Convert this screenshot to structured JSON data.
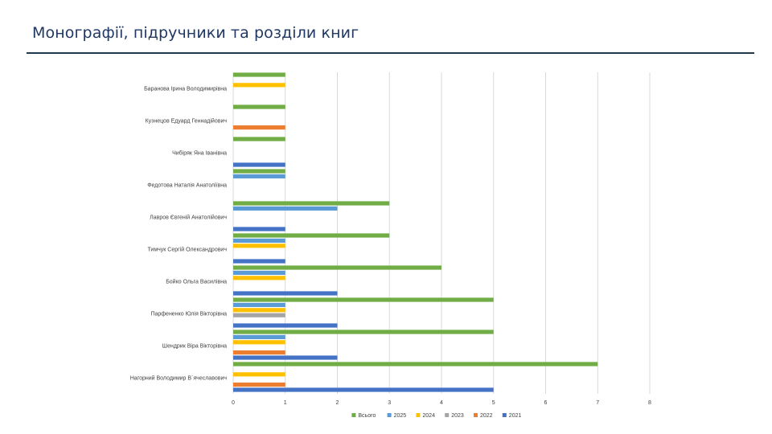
{
  "slide": {
    "title": "Монографії, підручники та розділи книг"
  },
  "chart_data": {
    "type": "bar",
    "orientation": "horizontal",
    "title": "",
    "xlabel": "",
    "ylabel": "",
    "xlim": [
      0,
      8
    ],
    "xticks": [
      "0",
      "1",
      "2",
      "3",
      "4",
      "5",
      "6",
      "7",
      "8"
    ],
    "grid": true,
    "legend_position": "bottom",
    "categories": [
      "Нагорний Володимир В`ячеславович",
      "Шендрик Віра Вікторівна",
      "Парфененко Юлія Вікторівна",
      "Бойко Ольга Василівна",
      "Тимчук Сергій Олександрович",
      "Лавров Євгеній Анатолійович",
      "Федотова Наталія Анатоліївна",
      "Чибіряк Яна Іванівна",
      "Кузнецов Едуард Геннадійович",
      "Баранова Ірина Володимирівна"
    ],
    "series": [
      {
        "name": "2021",
        "color": "#4472c4",
        "values": [
          5,
          2,
          2,
          2,
          1,
          1,
          0,
          1,
          0,
          0
        ]
      },
      {
        "name": "2022",
        "color": "#ed7d31",
        "values": [
          1,
          1,
          0,
          0,
          0,
          0,
          0,
          0,
          1,
          0
        ]
      },
      {
        "name": "2023",
        "color": "#a5a5a5",
        "values": [
          0,
          0,
          1,
          0,
          0,
          0,
          0,
          0,
          0,
          0
        ]
      },
      {
        "name": "2024",
        "color": "#ffc000",
        "values": [
          1,
          1,
          1,
          1,
          1,
          0,
          0,
          0,
          0,
          1
        ]
      },
      {
        "name": "2025",
        "color": "#5b9bd5",
        "values": [
          0,
          1,
          1,
          1,
          1,
          2,
          1,
          0,
          0,
          0
        ]
      },
      {
        "name": "Всього",
        "color": "#70ad47",
        "values": [
          7,
          5,
          5,
          4,
          3,
          3,
          1,
          1,
          1,
          1
        ]
      }
    ],
    "legend_order": [
      "Всього",
      "2025",
      "2024",
      "2023",
      "2022",
      "2021"
    ]
  }
}
